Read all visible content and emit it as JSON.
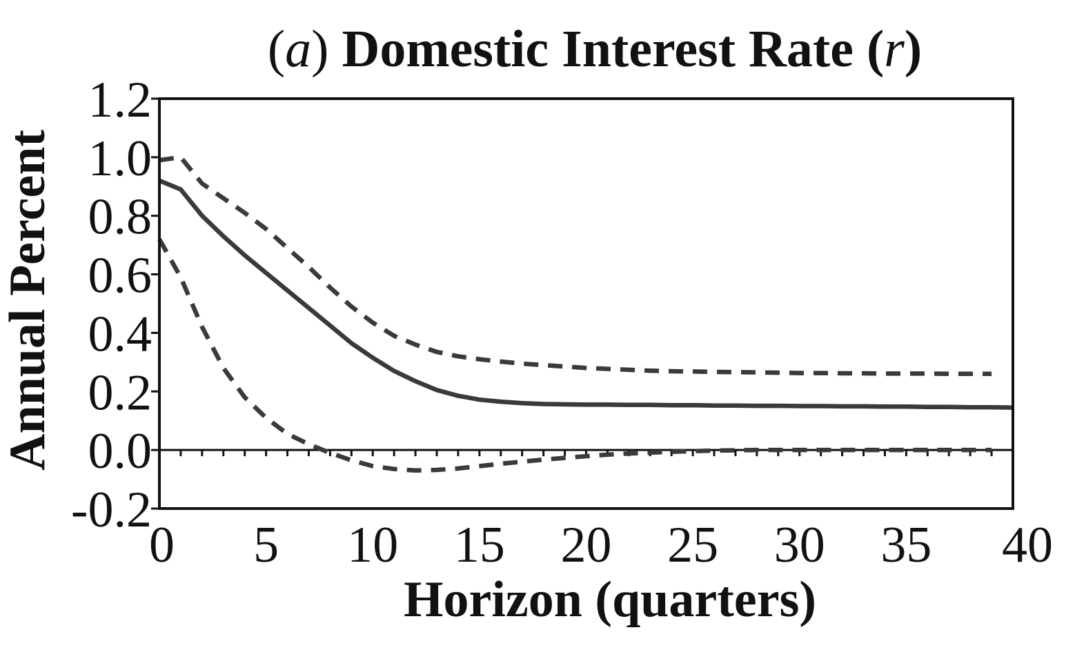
{
  "chart_data": {
    "type": "line",
    "title": {
      "paren_open": "(",
      "letter": "a",
      "paren_close": ")",
      "main": " Domestic Interest Rate ",
      "var_open": "(",
      "var": "r",
      "var_close": ")"
    },
    "xlabel": "Horizon (quarters)",
    "ylabel": "Annual Percent",
    "xlim": [
      0,
      40
    ],
    "ylim": [
      -0.2,
      1.2
    ],
    "xticks": [
      0,
      5,
      10,
      15,
      20,
      25,
      30,
      35,
      40
    ],
    "xtick_labels": [
      "0",
      "5",
      "10",
      "15",
      "20",
      "25",
      "30",
      "35",
      "40"
    ],
    "yticks": [
      -0.2,
      0.0,
      0.2,
      0.4,
      0.6,
      0.8,
      1.0,
      1.2
    ],
    "ytick_labels": [
      "-0.2",
      "0.0",
      "0.2",
      "0.4",
      "0.6",
      "0.8",
      "1.0",
      "1.2"
    ],
    "zero_line": true,
    "grid": false,
    "colors": {
      "line": "#3a3a3a",
      "axis": "#111111"
    },
    "series": [
      {
        "id": "median",
        "style": "solid",
        "x": [
          0,
          1,
          2,
          3,
          4,
          5,
          6,
          7,
          8,
          9,
          10,
          11,
          12,
          13,
          14,
          15,
          16,
          17,
          18,
          19,
          20,
          21,
          22,
          23,
          24,
          25,
          26,
          27,
          28,
          29,
          30,
          31,
          32,
          33,
          34,
          35,
          36,
          37,
          38,
          39,
          40
        ],
        "y": [
          0.92,
          0.89,
          0.8,
          0.73,
          0.665,
          0.605,
          0.545,
          0.485,
          0.425,
          0.365,
          0.315,
          0.27,
          0.235,
          0.205,
          0.185,
          0.172,
          0.165,
          0.16,
          0.157,
          0.156,
          0.155,
          0.155,
          0.154,
          0.154,
          0.153,
          0.153,
          0.152,
          0.152,
          0.151,
          0.151,
          0.15,
          0.15,
          0.149,
          0.149,
          0.148,
          0.148,
          0.147,
          0.147,
          0.146,
          0.146,
          0.145
        ]
      },
      {
        "id": "upper-band",
        "style": "dashed",
        "x": [
          0,
          1,
          2,
          3,
          4,
          5,
          6,
          7,
          8,
          9,
          10,
          11,
          12,
          13,
          14,
          15,
          16,
          17,
          18,
          19,
          20,
          21,
          22,
          23,
          24,
          25,
          26,
          27,
          28,
          29,
          30,
          31,
          32,
          33,
          34,
          35,
          36,
          37,
          38,
          39
        ],
        "y": [
          0.99,
          1.0,
          0.91,
          0.86,
          0.81,
          0.755,
          0.69,
          0.625,
          0.555,
          0.49,
          0.435,
          0.39,
          0.36,
          0.335,
          0.32,
          0.31,
          0.302,
          0.295,
          0.29,
          0.285,
          0.28,
          0.277,
          0.274,
          0.271,
          0.269,
          0.268,
          0.267,
          0.266,
          0.265,
          0.264,
          0.263,
          0.263,
          0.262,
          0.262,
          0.261,
          0.261,
          0.261,
          0.26,
          0.26,
          0.26
        ]
      },
      {
        "id": "lower-band",
        "style": "dashed",
        "x": [
          0,
          1,
          2,
          3,
          4,
          5,
          6,
          7,
          8,
          9,
          10,
          11,
          12,
          13,
          14,
          15,
          16,
          17,
          18,
          19,
          20,
          21,
          22,
          23,
          24,
          25,
          26,
          27,
          28,
          29,
          30,
          31,
          32,
          33,
          34,
          35,
          36,
          37,
          38,
          39
        ],
        "y": [
          0.72,
          0.59,
          0.42,
          0.28,
          0.18,
          0.11,
          0.055,
          0.02,
          -0.01,
          -0.035,
          -0.055,
          -0.065,
          -0.07,
          -0.068,
          -0.063,
          -0.055,
          -0.047,
          -0.04,
          -0.033,
          -0.027,
          -0.021,
          -0.016,
          -0.012,
          -0.009,
          -0.006,
          -0.004,
          -0.002,
          -0.001,
          0.0,
          0.0,
          0.0,
          0.0,
          0.0,
          0.0,
          0.0,
          0.0,
          0.0,
          0.0,
          0.0,
          0.0
        ]
      }
    ]
  }
}
